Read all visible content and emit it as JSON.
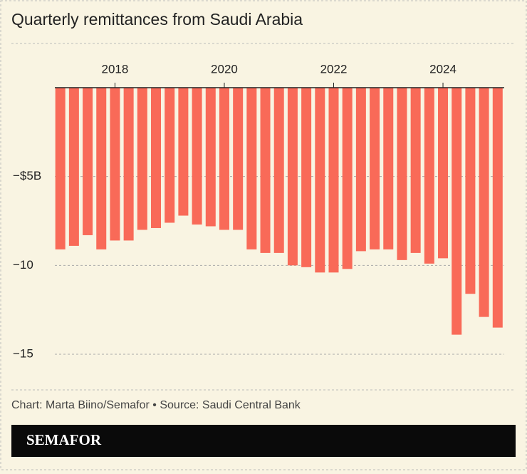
{
  "chart_data": {
    "type": "bar",
    "title": "Quarterly remittances from Saudi Arabia",
    "x": [
      2017,
      2017.25,
      2017.5,
      2017.75,
      2018,
      2018.25,
      2018.5,
      2018.75,
      2019,
      2019.25,
      2019.5,
      2019.75,
      2020,
      2020.25,
      2020.5,
      2020.75,
      2021,
      2021.25,
      2021.5,
      2021.75,
      2022,
      2022.25,
      2022.5,
      2022.75,
      2023,
      2023.25,
      2023.5,
      2023.75,
      2024,
      2024.25,
      2024.5,
      2024.75,
      2025
    ],
    "values": [
      -9.1,
      -8.9,
      -8.3,
      -9.1,
      -8.6,
      -8.6,
      -8.0,
      -7.9,
      -7.6,
      -7.2,
      -7.7,
      -7.8,
      -8.0,
      -8.0,
      -9.1,
      -9.3,
      -9.3,
      -10.0,
      -10.1,
      -10.4,
      -10.4,
      -10.2,
      -9.2,
      -9.1,
      -9.1,
      -9.7,
      -9.3,
      -9.9,
      -9.6,
      -13.9,
      -11.6,
      -12.9,
      -13.5
    ],
    "color": "#f96a58",
    "xlim": [
      2016.9,
      2025.12
    ],
    "xticks": [
      2018,
      2020,
      2022,
      2024
    ],
    "ylim": [
      -15,
      0
    ],
    "yticks": [
      {
        "value": -5,
        "label": "−$5B"
      },
      {
        "value": -10,
        "label": "−10"
      },
      {
        "value": -15,
        "label": "−15"
      }
    ],
    "grid": true,
    "footer": "Chart: Marta Biino/Semafor • Source: Saudi Central Bank",
    "brand": "SEMAFOR"
  }
}
